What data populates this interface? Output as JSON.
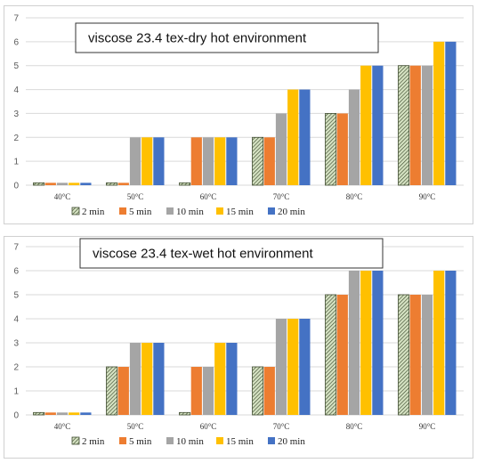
{
  "colors": {
    "2 min": "#a9c08e",
    "5 min": "#ed7d31",
    "10 min": "#a5a5a5",
    "15 min": "#ffc000",
    "20 min": "#4472c4"
  },
  "chart_data": [
    {
      "type": "bar",
      "title": "viscose 23.4 tex-dry hot environment",
      "categories": [
        "40°C",
        "50°C",
        "60°C",
        "70°C",
        "80°C",
        "90°C"
      ],
      "ylim": [
        0,
        7
      ],
      "yticks": [
        0,
        1,
        2,
        3,
        4,
        5,
        6,
        7
      ],
      "grid": true,
      "legend": "bottom",
      "series": [
        {
          "name": "2 min",
          "values": [
            0.1,
            0.1,
            0.1,
            2,
            3,
            5
          ]
        },
        {
          "name": "5 min",
          "values": [
            0.1,
            0.1,
            2,
            2,
            3,
            5
          ]
        },
        {
          "name": "10 min",
          "values": [
            0.1,
            2,
            2,
            3,
            4,
            5
          ]
        },
        {
          "name": "15 min",
          "values": [
            0.1,
            2,
            2,
            4,
            5,
            6
          ]
        },
        {
          "name": "20 min",
          "values": [
            0.1,
            2,
            2,
            4,
            5,
            6
          ]
        }
      ]
    },
    {
      "type": "bar",
      "title": "viscose 23.4 tex-wet hot environment",
      "categories": [
        "40°C",
        "50°C",
        "60°C",
        "70°C",
        "80°C",
        "90°C"
      ],
      "ylim": [
        0,
        7
      ],
      "yticks": [
        0,
        1,
        2,
        3,
        4,
        5,
        6,
        7
      ],
      "grid": true,
      "legend": "bottom",
      "series": [
        {
          "name": "2 min",
          "values": [
            0.1,
            2,
            0.1,
            2,
            5,
            5
          ]
        },
        {
          "name": "5 min",
          "values": [
            0.1,
            2,
            2,
            2,
            5,
            5
          ]
        },
        {
          "name": "10 min",
          "values": [
            0.1,
            3,
            2,
            4,
            6,
            5
          ]
        },
        {
          "name": "15 min",
          "values": [
            0.1,
            3,
            3,
            4,
            6,
            6
          ]
        },
        {
          "name": "20 min",
          "values": [
            0.1,
            3,
            3,
            4,
            6,
            6
          ]
        }
      ]
    }
  ]
}
